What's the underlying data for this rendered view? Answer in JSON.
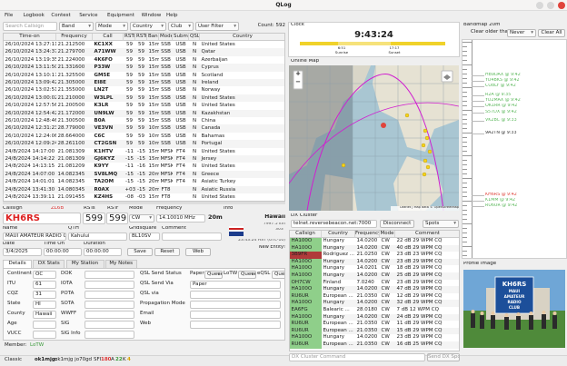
{
  "window": {
    "title": "QLog"
  },
  "menu": [
    "File",
    "Logbook",
    "Contest",
    "Service",
    "Equipment",
    "Window",
    "Help"
  ],
  "filter": {
    "search": "Search Callsign",
    "band": "Band",
    "mode": "Mode",
    "country": "Country",
    "club": "Club",
    "user_filter": "User Filter",
    "count": "Count: 592"
  },
  "log": {
    "columns": [
      "Time-on",
      "Frequency",
      "Call",
      "RSTs",
      "RSTr",
      "Band",
      "Mode",
      "Submode",
      "QSL",
      "Country"
    ],
    "rows": [
      [
        "26/10/2024 13:27:11",
        "21.212500",
        "KC1XX",
        "59",
        "59",
        "15m",
        "SSB",
        "USB",
        "N",
        "United States"
      ],
      [
        "26/10/2024 13:24:37",
        "21.279700",
        "A71WW",
        "59",
        "59",
        "15m",
        "SSB",
        "USB",
        "N",
        "Qatar"
      ],
      [
        "26/10/2024 13:19:35",
        "21.224000",
        "4K6FO",
        "59",
        "59",
        "15m",
        "SSB",
        "USB",
        "N",
        "Azerbaijan"
      ],
      [
        "26/10/2024 13:11:50",
        "21.331600",
        "P33W",
        "59",
        "59",
        "15m",
        "SSB",
        "USB",
        "N",
        "Cyprus"
      ],
      [
        "26/10/2024 13:10:17",
        "21.325500",
        "GM5E",
        "59",
        "59",
        "15m",
        "SSB",
        "USB",
        "N",
        "Scotland"
      ],
      [
        "26/10/2024 13:09:42",
        "21.305000",
        "EI8E",
        "59",
        "59",
        "15m",
        "SSB",
        "USB",
        "N",
        "Ireland"
      ],
      [
        "26/10/2024 13:02:51",
        "21.355000",
        "LN2T",
        "59",
        "59",
        "15m",
        "SSB",
        "USB",
        "N",
        "Norway"
      ],
      [
        "26/10/2024 13:00:02",
        "21.210000",
        "W3LPL",
        "59",
        "59",
        "15m",
        "SSB",
        "USB",
        "N",
        "United States"
      ],
      [
        "26/10/2024 12:57:56",
        "21.200500",
        "K3LR",
        "59",
        "59",
        "15m",
        "SSB",
        "USB",
        "N",
        "United States"
      ],
      [
        "26/10/2024 12:54:42",
        "21.172000",
        "UN9LW",
        "59",
        "59",
        "15m",
        "SSB",
        "USB",
        "N",
        "Kazakhstan"
      ],
      [
        "26/10/2024 12:48:46",
        "21.300500",
        "B0A",
        "59",
        "59",
        "15m",
        "SSB",
        "USB",
        "N",
        "China"
      ],
      [
        "26/10/2024 12:31:23",
        "28.779000",
        "VE3VN",
        "59",
        "59",
        "10m",
        "SSB",
        "USB",
        "N",
        "Canada"
      ],
      [
        "26/10/2024 12:24:06",
        "28.664000",
        "C6C",
        "59",
        "59",
        "10m",
        "SSB",
        "USB",
        "N",
        "Bahamas"
      ],
      [
        "26/10/2024 12:09:24",
        "28.261100",
        "CT2GSN",
        "59",
        "59",
        "10m",
        "SSB",
        "USB",
        "N",
        "Portugal"
      ],
      [
        "24/8/2024 14:17:00",
        "21.081309",
        "K1HTV",
        "-11",
        "-15",
        "15m",
        "MFSK",
        "FT4",
        "N",
        "United States"
      ],
      [
        "24/8/2024 14:14:22",
        "21.081309",
        "GJ6KYZ",
        "-15",
        "-15",
        "15m",
        "MFSK",
        "FT4",
        "N",
        "Jersey"
      ],
      [
        "24/8/2024 14:13:15",
        "21.081209",
        "K9YY",
        "-11",
        "-16",
        "15m",
        "MFSK",
        "FT4",
        "N",
        "United States"
      ],
      [
        "24/8/2024 14:07:00",
        "14.082345",
        "SV8LMQ",
        "-15",
        "-15",
        "20m",
        "MFSK",
        "FT4",
        "N",
        "Greece"
      ],
      [
        "24/8/2024 14:01:01",
        "14.082345",
        "TA2OM",
        "-15",
        "-15",
        "20m",
        "MFSK",
        "FT4",
        "N",
        "Asiatic Turkey"
      ],
      [
        "24/8/2024 13:41:30",
        "14.080345",
        "R0AX",
        "+03",
        "-15",
        "20m",
        "FT8",
        null,
        "N",
        "Asiatic Russia"
      ],
      [
        "24/8/2024 13:39:11",
        "21.091455",
        "KZ4HS",
        "-08",
        "-03",
        "15m",
        "FT8",
        null,
        "N",
        "United States"
      ]
    ]
  },
  "entry": {
    "labels": {
      "callsign": "Callsign",
      "rsts": "RSTs",
      "rstr": "RSTr",
      "mode": "Mode",
      "frequency": "Frequency",
      "info": "Info",
      "name": "Name",
      "qth": "QTH",
      "gridsquare": "Gridsquare",
      "comment": "Comment",
      "date": "Date",
      "time_on": "Time On",
      "duration": "Duration"
    },
    "callsign": "KH6RS",
    "prefix_hint": "ZL6B",
    "rsts": "599",
    "rstr": "599",
    "mode": "CW",
    "frequency": "14.10010 MHz",
    "band": "20m",
    "name": "MAUI AMATEUR RADIO CL",
    "qth": "Kahului",
    "gridsquare": "BL10SV",
    "date": "3/4/2025",
    "time_on": "00:00:00",
    "duration": "00:00:00",
    "buttons": [
      "Save",
      "Reset",
      "Web"
    ],
    "info": {
      "country": "Hawaii",
      "lines": [
        "7997.5 km",
        "303°"
      ],
      "time": "23:43:24 HST (UTC-10)",
      "status": "New Entity!"
    }
  },
  "tabs": [
    "Details",
    "DX Stats",
    "My Station",
    "My Notes"
  ],
  "details": {
    "col1": [
      {
        "label": "Continent",
        "value": "OC"
      },
      {
        "label": "ITU",
        "value": "61"
      },
      {
        "label": "CQZ",
        "value": "31"
      },
      {
        "label": "State",
        "value": "HI"
      },
      {
        "label": "County",
        "value": "Hawaii"
      },
      {
        "label": "Age"
      },
      {
        "label": "VUCC"
      }
    ],
    "col2": [
      {
        "label": "DOK"
      },
      {
        "label": "IOTA"
      },
      {
        "label": "POTA"
      },
      {
        "label": "SOTA"
      },
      {
        "label": "WWFF"
      },
      {
        "label": "SIG"
      },
      {
        "label": "SIG Info"
      }
    ],
    "qsl_send_status": {
      "label": "QSL Send Status",
      "selects": [
        [
          "Paper",
          "Queued"
        ],
        [
          "LoTW",
          "Queued"
        ],
        [
          "eQSL",
          "Queued"
        ]
      ]
    },
    "col3": [
      {
        "label": "QSL Send Via",
        "value": "Paper"
      },
      {
        "label": "QSL via"
      },
      {
        "label": "Propagation Mode"
      },
      {
        "label": "Email"
      },
      {
        "label": "Web"
      }
    ]
  },
  "member": {
    "label": "Member:",
    "value": "LoTW"
  },
  "status": {
    "profile": "Classic",
    "station": "ok1mjg:",
    "station_detail": "ok1mjg  jo70gd",
    "sfi": "SFI",
    "sfi_value": "180",
    "a": "A",
    "a_value": "22",
    "k": "K",
    "k_value": "4"
  },
  "clock": {
    "title": "Clock",
    "time": "9:43:24",
    "sunrise_time": "6:51",
    "sunrise": "Sunrise",
    "sunset_time": "17:17",
    "sunset": "Sunset"
  },
  "map": {
    "title": "Online Map",
    "zoom_in": "+",
    "zoom_out": "−",
    "attribution": "Leaflet | Map data © OpenStreetMap"
  },
  "dx_cluster": {
    "title": "DX Cluster",
    "server": "telnet.reversebeacon.net:7000",
    "disconnect": "Disconnect",
    "view": "Spots",
    "columns": [
      "Callsign",
      "Country",
      "Frequency",
      "Mode",
      "Comment"
    ],
    "rows": [
      {
        "cells": [
          "HA100O",
          "Hungary",
          "14.0200",
          "CW",
          "22 dB 29 WPM CQ"
        ],
        "color": "#8fcf8a"
      },
      {
        "cells": [
          "HA100O",
          "Hungary",
          "14.0200",
          "CW",
          "40 dB 29 WPM CQ"
        ],
        "color": "#8fcf8a"
      },
      {
        "cells": [
          "3B9FR",
          "Rodriguez ...",
          "21.0250",
          "CW",
          "23 dB 23 WPM CQ"
        ],
        "color": "#b03a3a"
      },
      {
        "cells": [
          "HA100O",
          "Hungary",
          "14.0200",
          "CW",
          "23 dB 29 WPM CQ"
        ],
        "color": "#8fcf8a"
      },
      {
        "cells": [
          "HA100O",
          "Hungary",
          "14.0201",
          "CW",
          "18 dB 29 WPM CQ"
        ],
        "color": "#8fcf8a"
      },
      {
        "cells": [
          "HA100O",
          "Hungary",
          "14.0200",
          "CW",
          "25 dB 29 WPM CQ"
        ],
        "color": "#8fcf8a"
      },
      {
        "cells": [
          "OH7CW",
          "Finland",
          "7.0240",
          "CW",
          "23 dB 29 WPM CQ"
        ],
        "color": "#8fcf8a"
      },
      {
        "cells": [
          "HA100O",
          "Hungary",
          "14.0200",
          "CW",
          "47 dB 29 WPM CQ"
        ],
        "color": "#8fcf8a"
      },
      {
        "cells": [
          "RU6UR",
          "European ...",
          "21.0350",
          "CW",
          "12 dB 29 WPM CQ"
        ],
        "color": "#8fcf8a"
      },
      {
        "cells": [
          "HA100O",
          "Hungary",
          "14.0200",
          "CW",
          "32 dB 29 WPM CQ"
        ],
        "color": "#8fcf8a"
      },
      {
        "cells": [
          "EA6FG",
          "Balearic ...",
          "28.0180",
          "CW",
          "7 dB 12 WPM CQ"
        ],
        "color": "#8fcf8a"
      },
      {
        "cells": [
          "HA100O",
          "Hungary",
          "14.0200",
          "CW",
          "24 dB 29 WPM CQ"
        ],
        "color": "#8fcf8a"
      },
      {
        "cells": [
          "RU6UR",
          "European ...",
          "21.0350",
          "CW",
          "11 dB 29 WPM CQ"
        ],
        "color": "#8fcf8a"
      },
      {
        "cells": [
          "RU6UR",
          "European ...",
          "21.0350",
          "CW",
          "15 dB 29 WPM CQ"
        ],
        "color": "#8fcf8a"
      },
      {
        "cells": [
          "HA100O",
          "Hungary",
          "14.0200",
          "CW",
          "23 dB 29 WPM CQ"
        ],
        "color": "#8fcf8a"
      },
      {
        "cells": [
          "RU6UR",
          "European ...",
          "21.0350",
          "CW",
          "16 dB 25 WPM CQ"
        ],
        "color": "#8fcf8a"
      }
    ],
    "command": "DX Cluster Command",
    "send": "Send DX Spot"
  },
  "bandmap": {
    "title": "Bandmap 20m",
    "clear_label": "Clear older than",
    "clear_value": "Never",
    "clear_all": "Clear All",
    "spots": [
      {
        "label": "HB9DAX @ 9:42",
        "color": "#5cb85c"
      },
      {
        "label": "YO4BKS @ 9:42",
        "color": "#5cb85c"
      },
      {
        "label": "CO8LY @ 9:42",
        "color": "#5cb85c"
      },
      {
        "label": "R2A @ 9:35",
        "color": "#5cb85c"
      },
      {
        "label": "YO2MAX @ 9:42",
        "color": "#5cb85c"
      },
      {
        "label": "OK1RR @ 9:42",
        "color": "#5cb85c"
      },
      {
        "label": "S57DX @ 9:42",
        "color": "#5cb85c"
      },
      {
        "label": "VK2BC @ 9:33",
        "color": "#5cb85c"
      },
      {
        "label": "9A2TN @ 9:33",
        "color": "#333333"
      },
      {
        "label": "KH6RS @ 9:42",
        "color": "#e0443c"
      },
      {
        "label": "K1MM @ 9:42",
        "color": "#5cb85c"
      },
      {
        "label": "RU6UR @ 9:42",
        "color": "#5cb85c"
      }
    ]
  },
  "profile_image": {
    "title": "Profile Image",
    "banner": [
      "KH6RS",
      "MAUI",
      "AMATEUR",
      "RADIO",
      "CLUB"
    ]
  }
}
